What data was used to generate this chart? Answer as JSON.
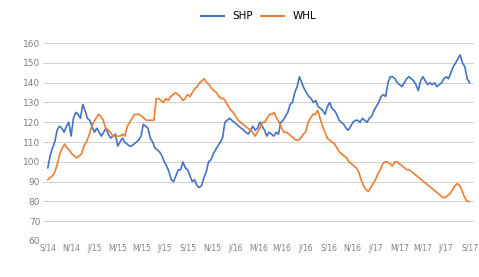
{
  "legend_labels": [
    "SHP",
    "WHL"
  ],
  "shp_color": "#4472C4",
  "whl_color": "#ED7D31",
  "line_width": 1.2,
  "ylim": [
    60,
    165
  ],
  "yticks": [
    60,
    70,
    80,
    90,
    100,
    110,
    120,
    130,
    140,
    150,
    160
  ],
  "xtick_labels": [
    "S/14",
    "N/14",
    "J/15",
    "M/15",
    "M/15",
    "J/15",
    "S/15",
    "N/15",
    "J/16",
    "M/16",
    "M/16",
    "J/16",
    "S/16",
    "N/16",
    "J/17",
    "M/17",
    "M/17",
    "J/17",
    "S/17"
  ],
  "background_color": "#FFFFFF",
  "grid_color": "#D0D0D0",
  "shp_values": [
    97,
    103,
    107,
    110,
    116,
    118,
    117,
    115,
    118,
    120,
    113,
    122,
    125,
    124,
    122,
    129,
    126,
    122,
    121,
    118,
    115,
    117,
    115,
    113,
    115,
    117,
    114,
    112,
    113,
    114,
    108,
    110,
    112,
    110,
    109,
    108,
    108,
    109,
    110,
    111,
    113,
    119,
    118,
    117,
    112,
    110,
    107,
    106,
    105,
    103,
    100,
    98,
    95,
    91,
    90,
    93,
    96,
    96,
    100,
    97,
    96,
    93,
    90,
    91,
    88,
    87,
    88,
    92,
    95,
    100,
    101,
    104,
    106,
    108,
    110,
    112,
    120,
    121,
    122,
    121,
    120,
    119,
    118,
    117,
    116,
    115,
    114,
    116,
    118,
    116,
    117,
    120,
    118,
    116,
    113,
    115,
    114,
    113,
    115,
    114,
    120,
    121,
    123,
    125,
    129,
    130,
    135,
    138,
    143,
    140,
    137,
    135,
    133,
    132,
    130,
    131,
    128,
    127,
    126,
    124,
    128,
    130,
    127,
    126,
    124,
    121,
    120,
    119,
    117,
    116,
    118,
    120,
    121,
    121,
    120,
    122,
    121,
    120,
    122,
    123,
    126,
    128,
    130,
    133,
    134,
    133,
    140,
    143,
    143,
    142,
    140,
    139,
    138,
    140,
    142,
    143,
    142,
    141,
    139,
    136,
    141,
    143,
    141,
    139,
    140,
    139,
    140,
    138,
    139,
    140,
    142,
    143,
    142,
    145,
    148,
    150,
    152,
    154,
    150,
    148,
    142,
    140
  ],
  "whl_values": [
    91,
    92,
    93,
    95,
    99,
    104,
    107,
    109,
    107,
    106,
    104,
    103,
    102,
    103,
    104,
    108,
    110,
    113,
    117,
    120,
    122,
    124,
    123,
    121,
    117,
    116,
    115,
    113,
    113,
    113,
    113,
    114,
    113,
    118,
    120,
    122,
    124,
    124,
    124,
    123,
    122,
    121,
    121,
    121,
    121,
    132,
    132,
    131,
    130,
    132,
    131,
    133,
    134,
    135,
    134,
    133,
    131,
    132,
    134,
    133,
    135,
    137,
    138,
    140,
    141,
    142,
    140,
    139,
    137,
    136,
    135,
    133,
    132,
    132,
    130,
    128,
    126,
    125,
    123,
    121,
    120,
    119,
    118,
    117,
    116,
    115,
    113,
    115,
    117,
    120,
    120,
    122,
    124,
    124,
    125,
    122,
    120,
    117,
    115,
    115,
    114,
    113,
    112,
    111,
    111,
    112,
    114,
    115,
    120,
    122,
    124,
    124,
    126,
    122,
    118,
    115,
    112,
    111,
    110,
    109,
    107,
    105,
    104,
    103,
    102,
    100,
    99,
    98,
    97,
    95,
    91,
    88,
    86,
    85,
    87,
    89,
    91,
    94,
    96,
    99,
    100,
    100,
    99,
    98,
    100,
    100,
    99,
    98,
    97,
    96,
    96,
    95,
    94,
    93,
    92,
    91,
    90,
    89,
    88,
    87,
    86,
    85,
    84,
    83,
    82,
    82,
    83,
    84,
    86,
    88,
    89,
    88,
    85,
    82,
    80,
    80
  ]
}
